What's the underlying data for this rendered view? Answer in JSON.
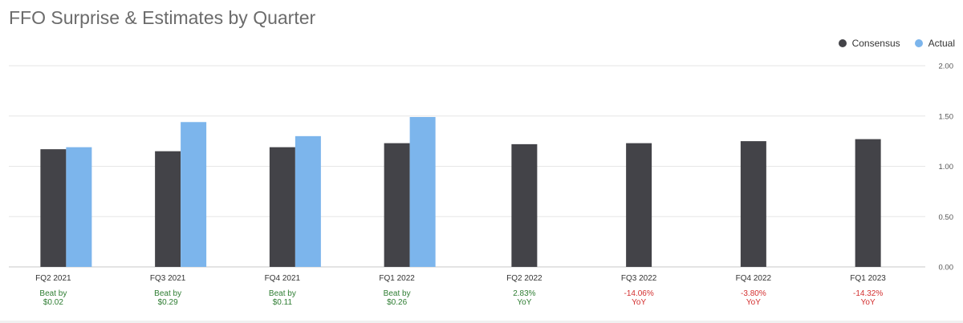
{
  "chart_data": {
    "type": "bar",
    "title": "FFO Surprise & Estimates by Quarter",
    "categories": [
      "FQ2 2021",
      "FQ3 2021",
      "FQ4 2021",
      "FQ1 2022",
      "FQ2 2022",
      "FQ3 2022",
      "FQ4 2022",
      "FQ1 2023"
    ],
    "series": [
      {
        "name": "Consensus",
        "color": "#434348",
        "values": [
          1.17,
          1.15,
          1.19,
          1.23,
          1.22,
          1.23,
          1.25,
          1.27
        ]
      },
      {
        "name": "Actual",
        "color": "#7cb5ec",
        "values": [
          1.19,
          1.44,
          1.3,
          1.49,
          null,
          null,
          null,
          null
        ]
      }
    ],
    "ylim": [
      0,
      2.0
    ],
    "y_ticks": [
      "0.00",
      "0.50",
      "1.00",
      "1.50",
      "2.00"
    ],
    "y_tick_values": [
      0,
      0.5,
      1.0,
      1.5,
      2.0
    ],
    "y_axis_side": "right",
    "legend_position": "top-right",
    "grid": true,
    "annotations": [
      {
        "line1": "Beat by",
        "line2": "$0.02",
        "status": "positive"
      },
      {
        "line1": "Beat by",
        "line2": "$0.29",
        "status": "positive"
      },
      {
        "line1": "Beat by",
        "line2": "$0.11",
        "status": "positive"
      },
      {
        "line1": "Beat by",
        "line2": "$0.26",
        "status": "positive"
      },
      {
        "line1": "2.83%",
        "line2": "YoY",
        "status": "positive"
      },
      {
        "line1": "-14.06%",
        "line2": "YoY",
        "status": "negative"
      },
      {
        "line1": "-3.80%",
        "line2": "YoY",
        "status": "negative"
      },
      {
        "line1": "-14.32%",
        "line2": "YoY",
        "status": "negative"
      }
    ],
    "status_colors": {
      "positive": "#2e7d32",
      "negative": "#d32f2f"
    }
  }
}
